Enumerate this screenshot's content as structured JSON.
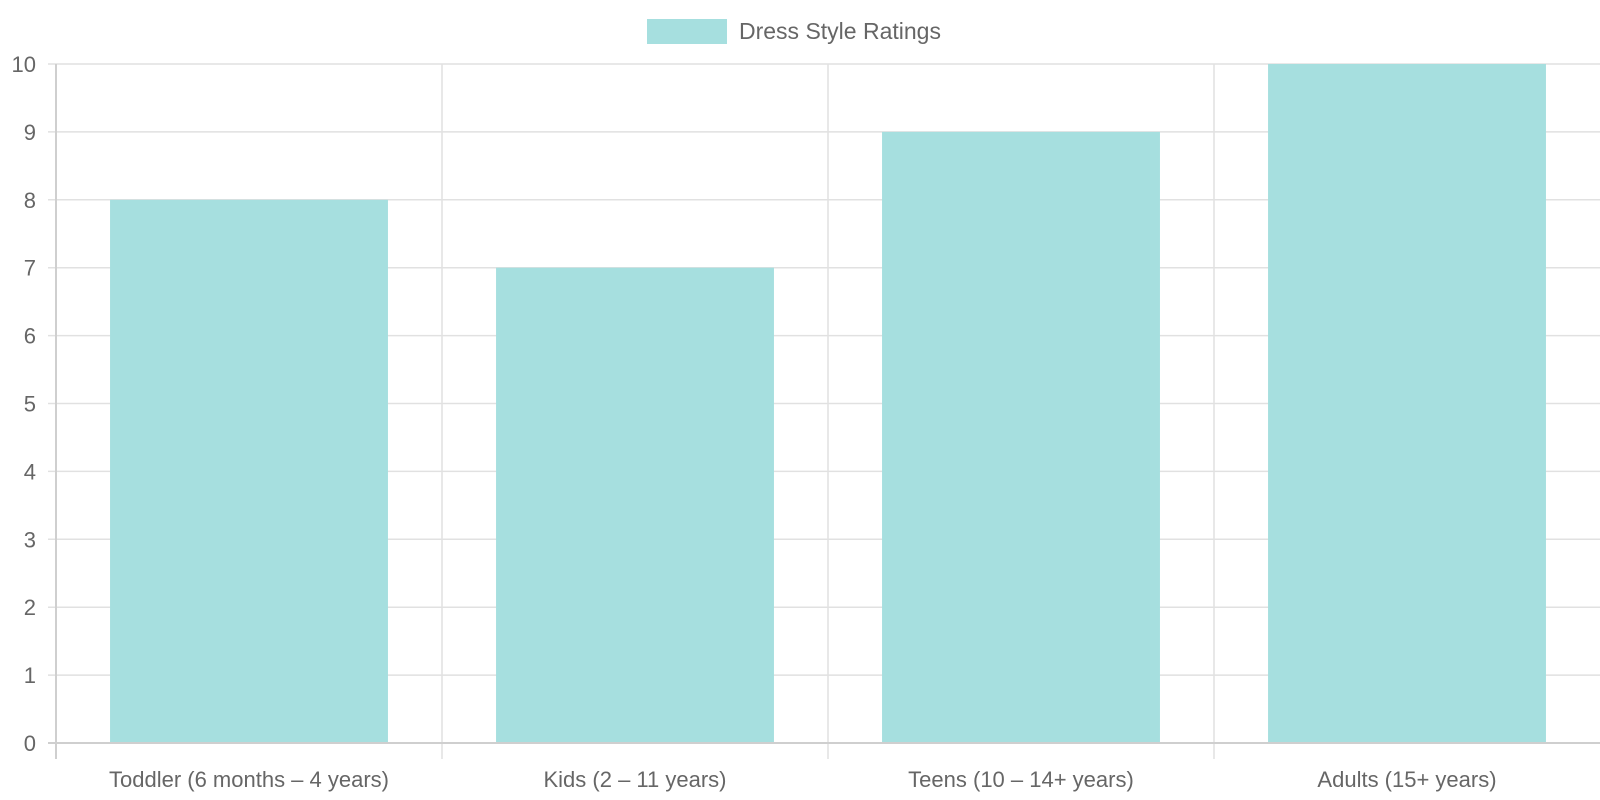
{
  "chart_data": {
    "type": "bar",
    "title": "",
    "xlabel": "",
    "ylabel": "",
    "categories": [
      "Toddler (6 months – 4 years)",
      "Kids (2 – 11 years)",
      "Teens (10 – 14+ years)",
      "Adults (15+ years)"
    ],
    "series": [
      {
        "name": "Dress Style Ratings",
        "values": [
          8,
          7,
          9,
          10
        ],
        "color": "#a6dfdf"
      }
    ],
    "ylim": [
      0,
      10
    ],
    "yticks": [
      "0",
      "1",
      "2",
      "3",
      "4",
      "5",
      "6",
      "7",
      "8",
      "9",
      "10"
    ],
    "grid": true,
    "legend_position": "top-center"
  }
}
